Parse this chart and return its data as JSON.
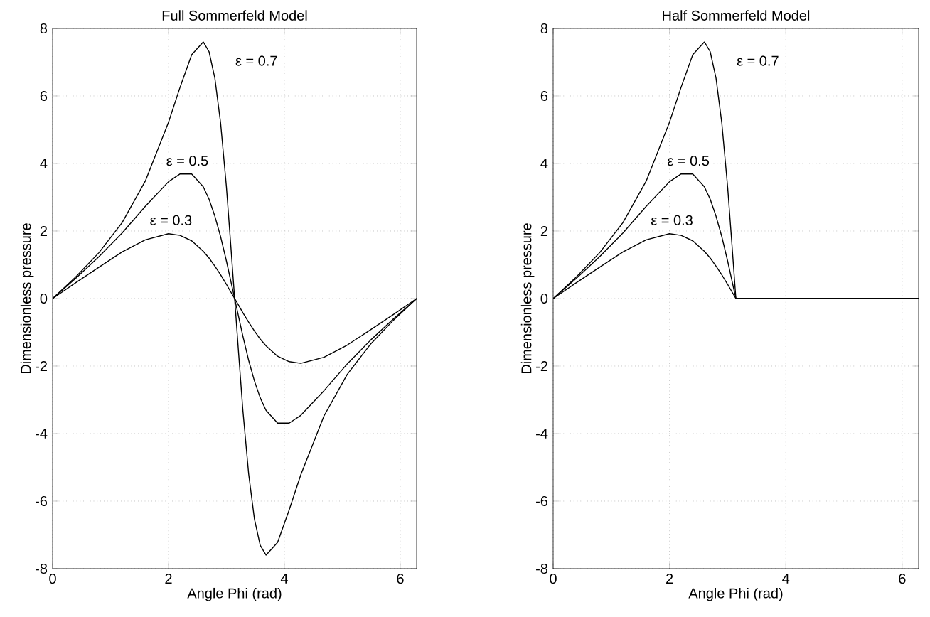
{
  "chart_data": [
    {
      "type": "line",
      "title": "Full Sommerfeld Model",
      "xlabel": "Angle Phi (rad)",
      "ylabel": "Dimensionless pressure",
      "xlim": [
        0,
        6.2832
      ],
      "ylim": [
        -8,
        8
      ],
      "xticks": [
        0,
        2,
        4,
        6
      ],
      "yticks": [
        -8,
        -6,
        -4,
        -2,
        0,
        2,
        4,
        6,
        8
      ],
      "grid": true,
      "marker": "none",
      "line_style": "solid",
      "series": [
        {
          "color": "#000000",
          "x": [
            0,
            0.4,
            0.8,
            1.2,
            1.6,
            2,
            2.2,
            2.4,
            2.6,
            2.7,
            2.8,
            2.9,
            3,
            3.07,
            3.1416,
            3.2132,
            3.2832,
            3.3832,
            3.4832,
            3.5832,
            3.6832,
            3.8832,
            4.0832,
            4.2832,
            4.6832,
            5.0832,
            5.4832,
            5.8832,
            6.2832
          ],
          "values": [
            0,
            0.47,
            0.93,
            1.38,
            1.74,
            1.92,
            1.87,
            1.71,
            1.4,
            1.2,
            0.96,
            0.7,
            0.42,
            0.21,
            0,
            -0.21,
            -0.42,
            -0.7,
            -0.96,
            -1.2,
            -1.4,
            -1.71,
            -1.87,
            -1.92,
            -1.74,
            -1.38,
            -0.93,
            -0.47,
            0
          ]
        },
        {
          "color": "#000000",
          "x": [
            0,
            0.4,
            0.8,
            1.2,
            1.6,
            2,
            2.2,
            2.4,
            2.6,
            2.7,
            2.8,
            2.9,
            3,
            3.07,
            3.1416,
            3.2132,
            3.2832,
            3.3832,
            3.4832,
            3.5832,
            3.6832,
            3.8832,
            4.0832,
            4.2832,
            4.6832,
            5.0832,
            5.4832,
            5.8832,
            6.2832
          ],
          "values": [
            0,
            0.6,
            1.24,
            1.94,
            2.73,
            3.46,
            3.69,
            3.69,
            3.31,
            2.94,
            2.44,
            1.83,
            1.11,
            0.56,
            0,
            -0.56,
            -1.11,
            -1.83,
            -2.44,
            -2.94,
            -3.31,
            -3.69,
            -3.69,
            -3.46,
            -2.73,
            -1.94,
            -1.24,
            -0.6,
            0
          ]
        },
        {
          "color": "#000000",
          "x": [
            0,
            0.4,
            0.8,
            1.2,
            1.6,
            2,
            2.2,
            2.4,
            2.6,
            2.7,
            2.8,
            2.9,
            3,
            3.07,
            3.1416,
            3.2132,
            3.2832,
            3.3832,
            3.4832,
            3.5832,
            3.6832,
            3.8832,
            4.0832,
            4.2832,
            4.6832,
            5.0832,
            5.4832,
            5.8832,
            6.2832
          ],
          "values": [
            0,
            0.64,
            1.36,
            2.25,
            3.48,
            5.22,
            6.26,
            7.22,
            7.6,
            7.31,
            6.53,
            5.19,
            3.3,
            1.69,
            0,
            -1.69,
            -3.3,
            -5.19,
            -6.53,
            -7.31,
            -7.6,
            -7.22,
            -6.26,
            -5.22,
            -3.48,
            -2.25,
            -1.36,
            -0.64,
            0
          ]
        }
      ],
      "annotations": [
        "ε = 0.7",
        "ε = 0.5",
        "ε = 0.3"
      ]
    },
    {
      "type": "line",
      "title": "Half Sommerfeld Model",
      "xlabel": "Angle Phi (rad)",
      "ylabel": "Dimensionless pressure",
      "xlim": [
        0,
        6.2832
      ],
      "ylim": [
        -8,
        8
      ],
      "xticks": [
        0,
        2,
        4,
        6
      ],
      "yticks": [
        -8,
        -6,
        -4,
        -2,
        0,
        2,
        4,
        6,
        8
      ],
      "grid": true,
      "marker": "none",
      "line_style": "solid",
      "series": [
        {
          "color": "#000000",
          "x": [
            0,
            0.4,
            0.8,
            1.2,
            1.6,
            2,
            2.2,
            2.4,
            2.6,
            2.7,
            2.8,
            2.9,
            3,
            3.07,
            3.1416,
            6.2832
          ],
          "values": [
            0,
            0.47,
            0.93,
            1.38,
            1.74,
            1.92,
            1.87,
            1.71,
            1.4,
            1.2,
            0.96,
            0.7,
            0.42,
            0.21,
            0,
            0
          ]
        },
        {
          "color": "#000000",
          "x": [
            0,
            0.4,
            0.8,
            1.2,
            1.6,
            2,
            2.2,
            2.4,
            2.6,
            2.7,
            2.8,
            2.9,
            3,
            3.07,
            3.1416,
            6.2832
          ],
          "values": [
            0,
            0.6,
            1.24,
            1.94,
            2.73,
            3.46,
            3.69,
            3.69,
            3.31,
            2.94,
            2.44,
            1.83,
            1.11,
            0.56,
            0,
            0
          ]
        },
        {
          "color": "#000000",
          "x": [
            0,
            0.4,
            0.8,
            1.2,
            1.6,
            2,
            2.2,
            2.4,
            2.6,
            2.7,
            2.8,
            2.9,
            3,
            3.07,
            3.1416,
            6.2832
          ],
          "values": [
            0,
            0.64,
            1.36,
            2.25,
            3.48,
            5.22,
            6.26,
            7.22,
            7.6,
            7.31,
            6.53,
            5.19,
            3.3,
            1.69,
            0,
            0
          ]
        }
      ],
      "annotations": [
        "ε = 0.7",
        "ε = 0.5",
        "ε = 0.3"
      ]
    }
  ]
}
